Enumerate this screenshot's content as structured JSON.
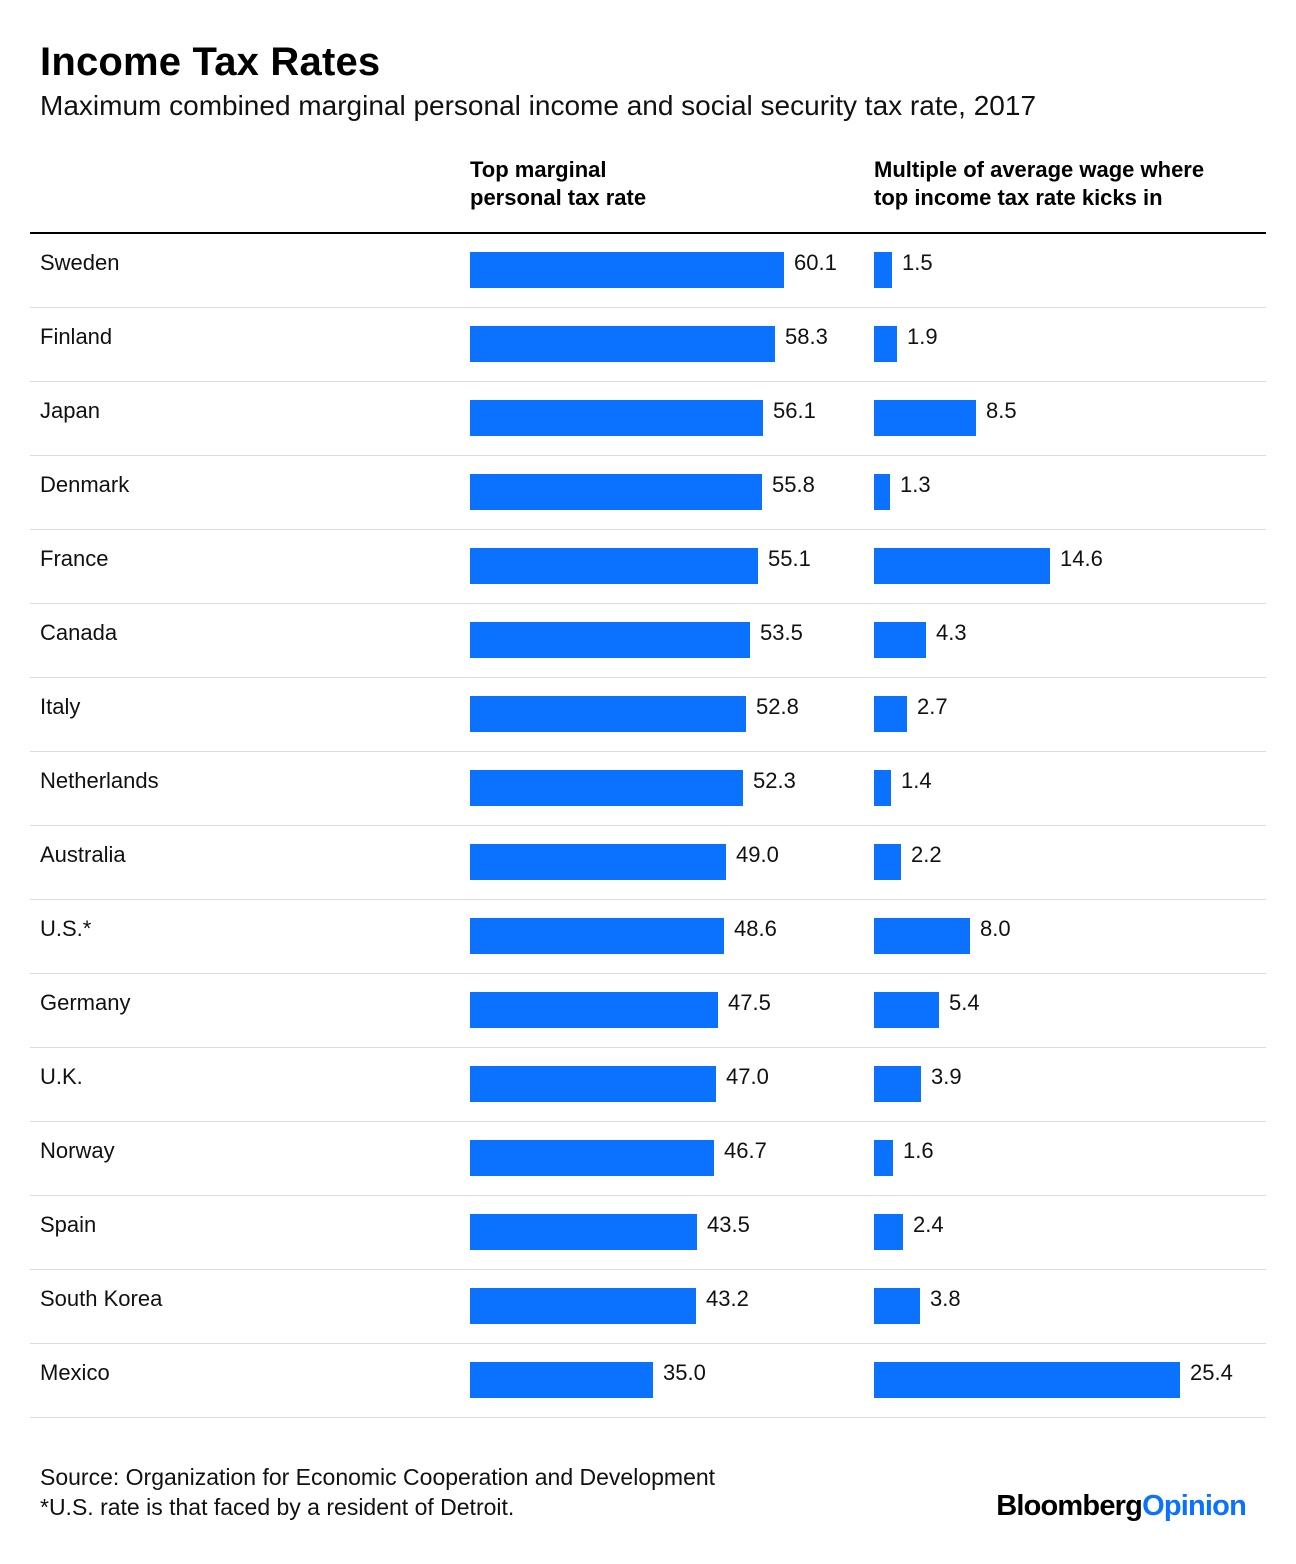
{
  "chart_data": {
    "type": "bar",
    "title": "Income Tax Rates",
    "subtitle": "Maximum combined marginal personal income and social security tax rate, 2017",
    "categories": [
      "Sweden",
      "Finland",
      "Japan",
      "Denmark",
      "France",
      "Canada",
      "Italy",
      "Netherlands",
      "Australia",
      "U.S.*",
      "Germany",
      "U.K.",
      "Norway",
      "Spain",
      "South Korea",
      "Mexico"
    ],
    "series": [
      {
        "name": "Top marginal personal tax rate",
        "header_lines": [
          "Top marginal",
          "personal tax rate"
        ],
        "values": [
          60.1,
          58.3,
          56.1,
          55.8,
          55.1,
          53.5,
          52.8,
          52.3,
          49.0,
          48.6,
          47.5,
          47.0,
          46.7,
          43.5,
          43.2,
          35.0
        ],
        "labels": [
          "60.1",
          "58.3",
          "56.1",
          "55.8",
          "55.1",
          "53.5",
          "52.8",
          "52.3",
          "49.0",
          "48.6",
          "47.5",
          "47.0",
          "46.7",
          "43.5",
          "43.2",
          "35.0"
        ],
        "max": 60.1
      },
      {
        "name": "Multiple of average wage where top income tax rate kicks in",
        "header_lines": [
          "Multiple of average wage where",
          "top income tax rate kicks in"
        ],
        "values": [
          1.5,
          1.9,
          8.5,
          1.3,
          14.6,
          4.3,
          2.7,
          1.4,
          2.2,
          8.0,
          5.4,
          3.9,
          1.6,
          2.4,
          3.8,
          25.4
        ],
        "labels": [
          "1.5",
          "1.9",
          "8.5",
          "1.3",
          "14.6",
          "4.3",
          "2.7",
          "1.4",
          "2.2",
          "8.0",
          "5.4",
          "3.9",
          "1.6",
          "2.4",
          "3.8",
          "25.4"
        ],
        "max": 25.4
      }
    ],
    "colors": {
      "bar": "#0a72ff"
    }
  },
  "footer": {
    "source": "Source: Organization for Economic Cooperation and Development",
    "note": "*U.S. rate is that faced by a resident of Detroit."
  },
  "brand": {
    "name_part": "Bloomberg",
    "accent_part": "Opinion"
  }
}
